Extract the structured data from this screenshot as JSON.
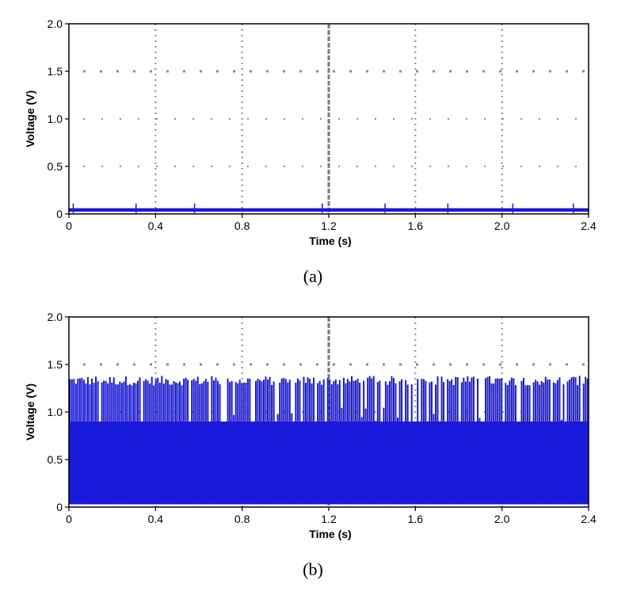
{
  "chart_data": [
    {
      "type": "line",
      "caption": "(a)",
      "xlabel": "Time (s)",
      "ylabel": "Voltage (V)",
      "xlim": [
        0,
        2.4
      ],
      "ylim": [
        0,
        2.0
      ],
      "xticks": [
        "0",
        "0.4",
        "0.8",
        "1.2",
        "1.6",
        "2.0",
        "2.4"
      ],
      "yticks": [
        "0",
        "0.5",
        "1.0",
        "1.5",
        "2.0"
      ],
      "grid": true,
      "series_color": "#1a1adc",
      "series": [
        {
          "baseline": 0.04,
          "peak": 0.06,
          "spikes": [
            0.02,
            0.31,
            0.58,
            1.17,
            1.46,
            1.75,
            2.05,
            2.33
          ]
        }
      ]
    },
    {
      "type": "line",
      "caption": "(b)",
      "xlabel": "Time (s)",
      "ylabel": "Voltage (V)",
      "xlim": [
        0,
        2.4
      ],
      "ylim": [
        0,
        2.0
      ],
      "xticks": [
        "0",
        "0.4",
        "0.8",
        "1.2",
        "1.6",
        "2.0",
        "2.4"
      ],
      "yticks": [
        "0",
        "0.5",
        "1.0",
        "1.5",
        "2.0"
      ],
      "grid": true,
      "series_color": "#1a1adc",
      "series": [
        {
          "low": 0.03,
          "high_min": 1.28,
          "high_max": 1.38,
          "dip_min": 0.35,
          "dip_max": 1.05
        }
      ]
    }
  ]
}
